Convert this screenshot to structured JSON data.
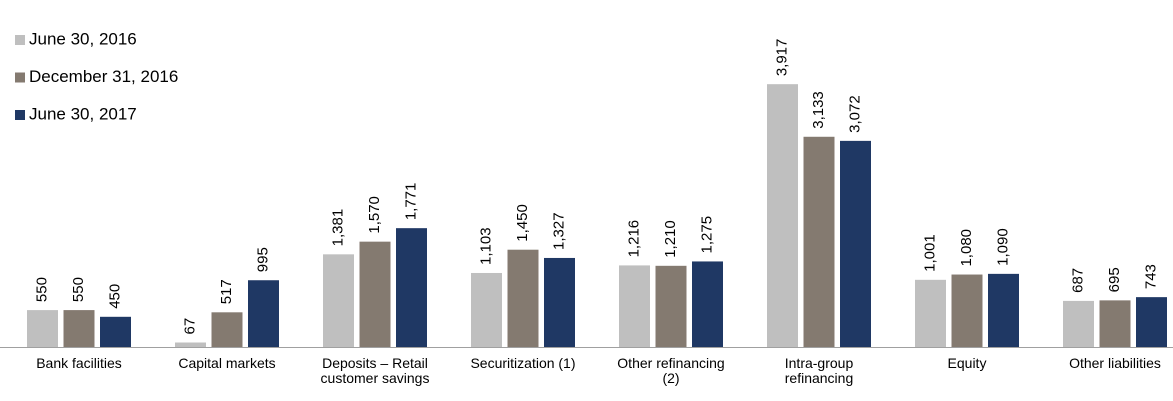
{
  "chart_data": {
    "type": "bar",
    "categories": [
      "Bank facilities",
      "Capital markets",
      "Deposits – Retail customer savings",
      "Securitization (1)",
      "Other refinancing (2)",
      "Intra-group refinancing",
      "Equity",
      "Other liabilities"
    ],
    "series": [
      {
        "name": "June 30, 2016",
        "color": "#bfbfbf",
        "values": [
          550,
          67,
          1381,
          1103,
          1216,
          3917,
          1001,
          687
        ],
        "value_labels": [
          "550",
          "67",
          "1,381",
          "1,103",
          "1,216",
          "3,917",
          "1,001",
          "687"
        ]
      },
      {
        "name": "December 31, 2016",
        "color": "#847a70",
        "values": [
          550,
          517,
          1570,
          1450,
          1210,
          3133,
          1080,
          695
        ],
        "value_labels": [
          "550",
          "517",
          "1,570",
          "1,450",
          "1,210",
          "3,133",
          "1,080",
          "695"
        ]
      },
      {
        "name": "June 30, 2017",
        "color": "#1f3864",
        "values": [
          450,
          995,
          1771,
          1327,
          1275,
          3072,
          1090,
          743
        ],
        "value_labels": [
          "450",
          "995",
          "1,771",
          "1,327",
          "1,275",
          "3,072",
          "1,090",
          "743"
        ]
      }
    ],
    "legend": "top-left"
  }
}
